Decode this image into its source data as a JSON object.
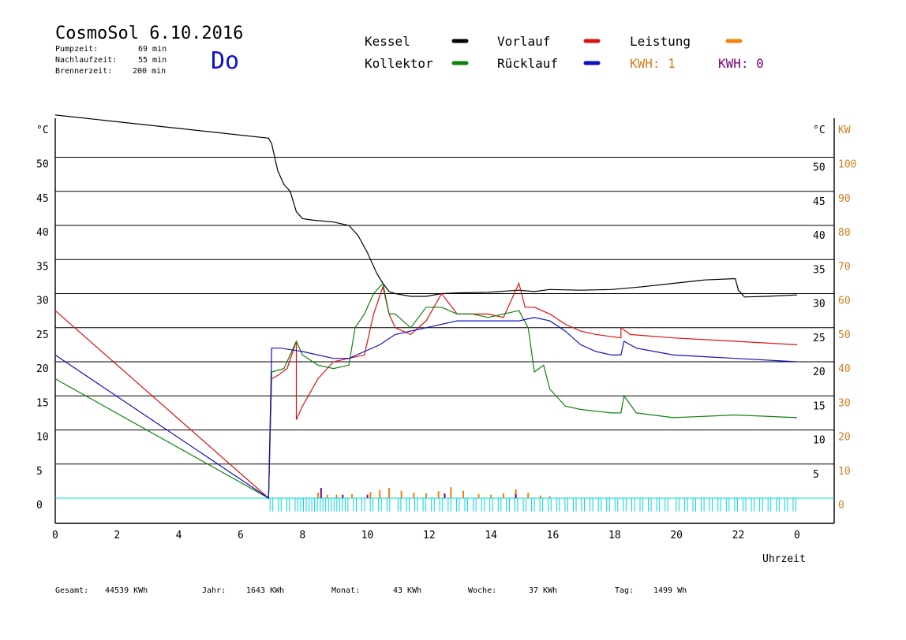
{
  "header": {
    "title": "CosmoSol 6.10.2016",
    "day": "Do",
    "info": [
      {
        "label": "Pumpzeit:",
        "value": "69 min"
      },
      {
        "label": "Nachlaufzeit:",
        "value": "55 min"
      },
      {
        "label": "Brennerzeit:",
        "value": "200 min"
      }
    ]
  },
  "legend": {
    "kessel": "Kessel",
    "vorlauf": "Vorlauf",
    "leistung": "Leistung",
    "kollektor": "Kollektor",
    "ruecklauf": "Rücklauf",
    "kwh1": "KWH: 1",
    "kwh0": "KWH: 0"
  },
  "footer": {
    "gesamt_label": "Gesamt:",
    "gesamt": "44539 KWh",
    "jahr_label": "Jahr:",
    "jahr": "1643 KWh",
    "monat_label": "Monat:",
    "monat": "43 KWh",
    "woche_label": "Woche:",
    "woche": "37 KWh",
    "tag_label": "Tag:",
    "tag": "1499 Wh"
  },
  "colors": {
    "kessel": "#000000",
    "vorlauf": "#e01010",
    "kollektor": "#108010",
    "ruecklauf": "#1010c0",
    "leistung": "#f08010",
    "kwh0": "#800080",
    "pump": "#00d8e0",
    "axis_right": "#d08020"
  },
  "chart_data": {
    "type": "line",
    "title": "CosmoSol 6.10.2016",
    "xlabel": "Uhrzeit",
    "ylabel_left": "°C",
    "ylabel_right_1": "°C",
    "ylabel_right_2": "KW",
    "x_ticks": [
      "0",
      "2",
      "4",
      "6",
      "8",
      "10",
      "12",
      "14",
      "16",
      "18",
      "20",
      "22",
      "0"
    ],
    "y_ticks_left": [
      "0",
      "5",
      "10",
      "15",
      "20",
      "25",
      "30",
      "35",
      "40",
      "45",
      "50"
    ],
    "y_ticks_right_c": [
      "5",
      "10",
      "15",
      "20",
      "25",
      "30",
      "35",
      "40",
      "45",
      "50"
    ],
    "y_ticks_right_kw": [
      "0",
      "10",
      "20",
      "30",
      "40",
      "50",
      "60",
      "70",
      "80",
      "90",
      "100"
    ],
    "xlim": [
      0,
      24
    ],
    "ylim": [
      -3.7,
      56.2
    ],
    "grid": true,
    "series": [
      {
        "name": "Kessel",
        "color": "#000000",
        "x": [
          0,
          6.9,
          7.0,
          7.2,
          7.4,
          7.6,
          7.8,
          8.0,
          8.3,
          9.0,
          9.5,
          9.8,
          10.1,
          10.4,
          10.6,
          10.8,
          11.0,
          11.5,
          12.0,
          12.5,
          13.0,
          14.0,
          15.0,
          15.5,
          16.0,
          17.0,
          18.0,
          19.0,
          20.0,
          21.0,
          22.0,
          22.1,
          22.3,
          23.0,
          24.0
        ],
        "y": [
          56.2,
          52.8,
          52.0,
          48.0,
          46.0,
          45.0,
          42.0,
          41.0,
          40.8,
          40.5,
          40.0,
          38.5,
          36.0,
          33.0,
          31.5,
          30.3,
          30.0,
          29.6,
          29.6,
          30.0,
          30.1,
          30.2,
          30.5,
          30.3,
          30.6,
          30.5,
          30.6,
          31.0,
          31.5,
          32.0,
          32.2,
          30.5,
          29.5,
          29.6,
          29.8
        ]
      },
      {
        "name": "Vorlauf",
        "color": "#e01010",
        "x": [
          0,
          6.9,
          7.0,
          7.2,
          7.5,
          7.8,
          7.8,
          8.0,
          8.5,
          9.0,
          9.5,
          10.0,
          10.3,
          10.6,
          10.8,
          11.0,
          11.5,
          12.0,
          12.5,
          13.0,
          13.5,
          14.0,
          14.5,
          15.0,
          15.2,
          15.5,
          16.0,
          16.5,
          17.0,
          17.5,
          18.3,
          18.3,
          18.6,
          20.0,
          22.0,
          24.0
        ],
        "y": [
          27.5,
          0,
          17.5,
          18,
          19,
          23,
          11.5,
          13.5,
          17.5,
          20.0,
          20.5,
          21,
          27,
          31,
          27,
          25,
          24,
          26,
          30,
          27,
          27,
          27,
          26.5,
          31.5,
          28,
          28,
          27,
          25.5,
          24.5,
          24,
          23.5,
          25,
          24,
          23.5,
          23,
          22.5
        ]
      },
      {
        "name": "Kollektor",
        "color": "#108010",
        "x": [
          0,
          6.9,
          7.0,
          7.4,
          7.8,
          8.0,
          8.5,
          9.0,
          9.5,
          9.7,
          10.0,
          10.3,
          10.6,
          10.8,
          11.0,
          11.5,
          12.0,
          12.5,
          13.0,
          13.5,
          14.0,
          14.5,
          15.0,
          15.3,
          15.5,
          15.8,
          16.0,
          16.5,
          17.0,
          18.0,
          18.3,
          18.4,
          18.8,
          20.0,
          22.0,
          24.0
        ],
        "y": [
          17.5,
          0,
          18.5,
          19,
          23,
          21,
          19.5,
          19,
          19.5,
          25,
          27,
          30,
          31.5,
          27,
          27,
          25,
          28,
          28,
          27,
          27,
          26.5,
          27,
          27.5,
          25,
          18.5,
          19.5,
          16,
          13.5,
          13,
          12.5,
          12.5,
          15,
          12.5,
          11.8,
          12.2,
          11.8
        ]
      },
      {
        "name": "Rücklauf",
        "color": "#1010c0",
        "x": [
          0,
          6.9,
          7.0,
          7.3,
          8.0,
          9.0,
          9.5,
          10.0,
          10.5,
          11.0,
          11.5,
          12.0,
          12.5,
          13.0,
          14.0,
          15.0,
          15.5,
          16.0,
          16.5,
          17.0,
          17.5,
          18.0,
          18.3,
          18.4,
          18.8,
          20.0,
          22.0,
          24.0
        ],
        "y": [
          21,
          0,
          22,
          22,
          21.5,
          20.5,
          20.5,
          21.5,
          22.5,
          24,
          24.5,
          25,
          25.5,
          26,
          26,
          26,
          26.5,
          26,
          24.5,
          22.5,
          21.5,
          21.0,
          21.0,
          23.0,
          22.0,
          21.0,
          20.5,
          20.0
        ]
      },
      {
        "name": "Leistung",
        "color": "#f08010",
        "x": [
          8.5,
          8.8,
          9.1,
          9.6,
          10.2,
          10.5,
          10.8,
          11.2,
          11.6,
          12.0,
          12.4,
          12.8,
          13.2,
          13.7,
          14.1,
          14.5,
          14.9,
          15.3,
          15.7,
          16.0
        ],
        "y": [
          0.8,
          0.5,
          0.5,
          0.6,
          0.9,
          1.2,
          1.5,
          1.1,
          0.8,
          0.7,
          1.0,
          1.6,
          1.1,
          0.6,
          0.5,
          0.7,
          1.3,
          0.8,
          0.4,
          0.3
        ]
      },
      {
        "name": "KWH: 0",
        "color": "#800080",
        "x": [
          8.6,
          9.3,
          10.1,
          12.6,
          14.9
        ],
        "y": [
          1.5,
          0.5,
          0.5,
          0.7,
          0.6
        ]
      }
    ]
  }
}
